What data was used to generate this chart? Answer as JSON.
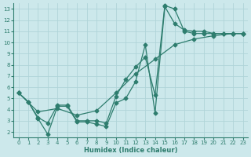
{
  "xlabel": "Humidex (Indice chaleur)",
  "bg_color": "#cce8eb",
  "line_color": "#2e7d6e",
  "grid_color": "#b0d4d8",
  "xlim": [
    -0.5,
    23.5
  ],
  "ylim": [
    1.5,
    13.5
  ],
  "xticks": [
    0,
    1,
    2,
    3,
    4,
    5,
    6,
    7,
    8,
    9,
    10,
    11,
    12,
    13,
    14,
    15,
    16,
    17,
    18,
    19,
    20,
    21,
    22,
    23
  ],
  "yticks": [
    2,
    3,
    4,
    5,
    6,
    7,
    8,
    9,
    10,
    11,
    12,
    13
  ],
  "line1_x": [
    0,
    1,
    2,
    3,
    4,
    5,
    6,
    7,
    8,
    9,
    10,
    11,
    12,
    13,
    14,
    15,
    16,
    17,
    18,
    19,
    20,
    21,
    22,
    23
  ],
  "line1_y": [
    5.5,
    4.7,
    3.2,
    1.8,
    4.3,
    4.3,
    2.9,
    2.9,
    2.7,
    2.5,
    4.6,
    5.0,
    6.5,
    9.8,
    3.7,
    13.2,
    11.7,
    11.1,
    11.0,
    11.0,
    10.8,
    10.8,
    10.8,
    10.8
  ],
  "line2_x": [
    0,
    1,
    2,
    3,
    4,
    5,
    6,
    7,
    8,
    9,
    10,
    11,
    12,
    13,
    14,
    15,
    16,
    17,
    18,
    19,
    20,
    21,
    22,
    23
  ],
  "line2_y": [
    5.5,
    4.7,
    3.3,
    2.8,
    4.4,
    4.4,
    3.0,
    3.0,
    3.0,
    2.8,
    5.2,
    6.7,
    7.8,
    8.7,
    5.3,
    13.3,
    13.0,
    11.0,
    10.8,
    10.8,
    10.8,
    10.8,
    10.8,
    10.8
  ],
  "line3_x": [
    0,
    2,
    4,
    6,
    8,
    10,
    12,
    14,
    16,
    18,
    20,
    22,
    23
  ],
  "line3_y": [
    5.5,
    3.8,
    4.1,
    3.5,
    3.9,
    5.5,
    7.2,
    8.5,
    9.8,
    10.3,
    10.6,
    10.8,
    10.8
  ]
}
